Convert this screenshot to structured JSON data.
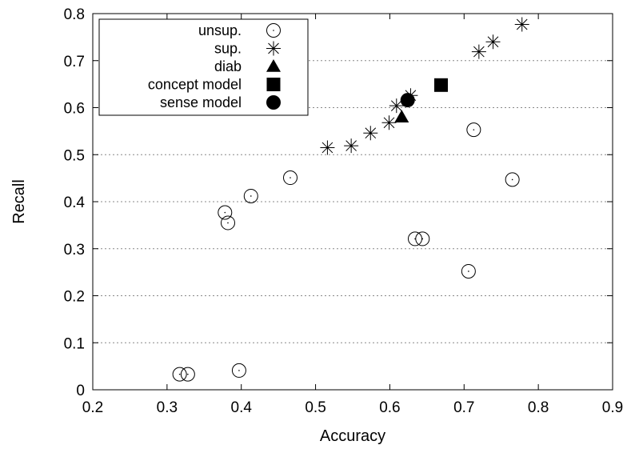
{
  "chart_data": {
    "type": "scatter",
    "title": "",
    "xlabel": "Accuracy",
    "ylabel": "Recall",
    "xlim": [
      0.2,
      0.9
    ],
    "ylim": [
      0,
      0.8
    ],
    "x_ticks": [
      "0.2",
      "0.3",
      "0.4",
      "0.5",
      "0.6",
      "0.7",
      "0.8",
      "0.9"
    ],
    "y_ticks": [
      "0",
      "0.1",
      "0.2",
      "0.3",
      "0.4",
      "0.5",
      "0.6",
      "0.7",
      "0.8"
    ],
    "grid": "horizontal dotted",
    "legend_position": "top-left",
    "series": [
      {
        "name": "unsup.",
        "marker": "open-circle",
        "points": [
          [
            0.317,
            0.033
          ],
          [
            0.328,
            0.033
          ],
          [
            0.397,
            0.041
          ],
          [
            0.378,
            0.377
          ],
          [
            0.382,
            0.355
          ],
          [
            0.413,
            0.412
          ],
          [
            0.466,
            0.451
          ],
          [
            0.634,
            0.321
          ],
          [
            0.644,
            0.321
          ],
          [
            0.706,
            0.252
          ],
          [
            0.713,
            0.553
          ],
          [
            0.765,
            0.447
          ]
        ]
      },
      {
        "name": "sup.",
        "marker": "asterisk",
        "points": [
          [
            0.516,
            0.515
          ],
          [
            0.548,
            0.519
          ],
          [
            0.574,
            0.546
          ],
          [
            0.599,
            0.568
          ],
          [
            0.609,
            0.604
          ],
          [
            0.628,
            0.626
          ],
          [
            0.72,
            0.719
          ],
          [
            0.739,
            0.74
          ],
          [
            0.778,
            0.777
          ]
        ]
      },
      {
        "name": "diab",
        "marker": "filled-triangle",
        "points": [
          [
            0.616,
            0.58
          ]
        ]
      },
      {
        "name": "concept model",
        "marker": "filled-square",
        "points": [
          [
            0.669,
            0.648
          ]
        ]
      },
      {
        "name": "sense model",
        "marker": "filled-circle",
        "points": [
          [
            0.624,
            0.616
          ]
        ]
      }
    ]
  },
  "colors": {
    "marker": "#000000",
    "grid": "#888888",
    "frame": "#000000"
  }
}
